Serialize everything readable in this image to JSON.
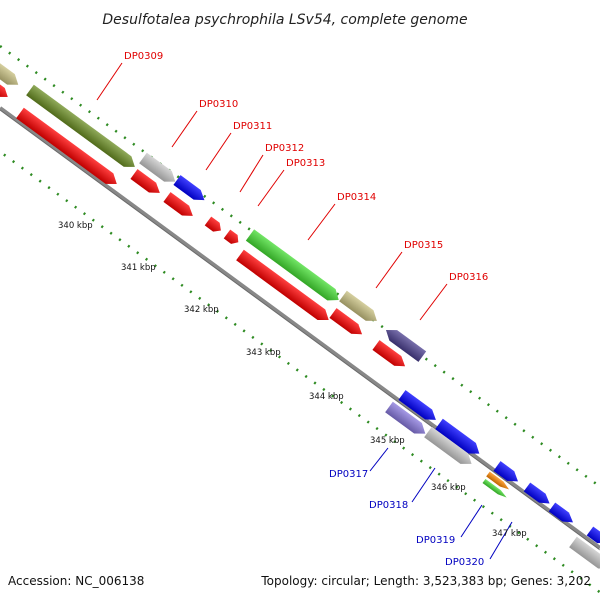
{
  "title": "Desulfotalea psychrophila LSv54, complete genome",
  "footer": {
    "accession": "Accession: NC_006138",
    "summary": "Topology: circular; Length: 3,523,383 bp; Genes: 3,202"
  },
  "scale_labels": [
    "340 kbp",
    "341 kbp",
    "342 kbp",
    "343 kbp",
    "344 kbp",
    "345 kbp",
    "346 kbp",
    "347 kbp"
  ],
  "gene_labels": [
    {
      "text": "DP0309",
      "color": "#e00000"
    },
    {
      "text": "DP0310",
      "color": "#e00000"
    },
    {
      "text": "DP0311",
      "color": "#e00000"
    },
    {
      "text": "DP0312",
      "color": "#e00000"
    },
    {
      "text": "DP0313",
      "color": "#e00000"
    },
    {
      "text": "DP0314",
      "color": "#e00000"
    },
    {
      "text": "DP0315",
      "color": "#e00000"
    },
    {
      "text": "DP0316",
      "color": "#e00000"
    },
    {
      "text": "DP0317",
      "color": "#0000c0"
    },
    {
      "text": "DP0318",
      "color": "#0000c0"
    },
    {
      "text": "DP0319",
      "color": "#0000c0"
    },
    {
      "text": "DP0320",
      "color": "#0000c0"
    }
  ],
  "colors": {
    "red": "#ff0000",
    "olive": "#6b8e23",
    "khaki": "#c8c080",
    "gray": "#c8c8c8",
    "blue": "#0000ff",
    "green": "#44dd33",
    "darkslate": "#4b3f8f",
    "lavender": "#8878dd",
    "orange": "#ff8800",
    "backbone": "#888888",
    "dots": "#2e8b22"
  }
}
